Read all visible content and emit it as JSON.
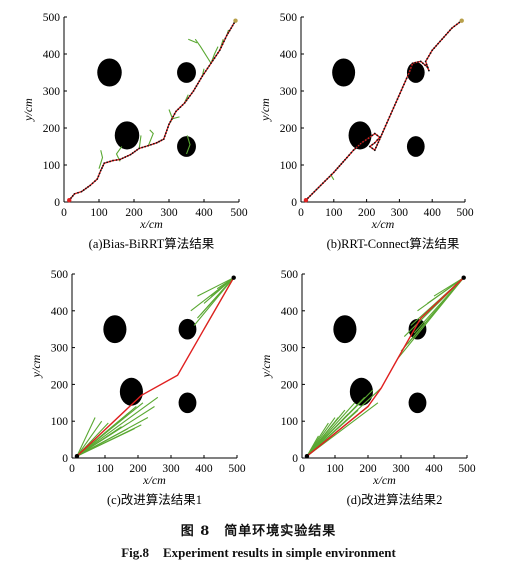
{
  "figure_caption": {
    "number_cn": "图 8",
    "title_cn": "简单环境实验结果",
    "number_en": "Fig.8",
    "title_en": "Experiment results in simple environment"
  },
  "colors": {
    "obstacle": "#000000",
    "path": "#e02020",
    "tree": "#5aa832",
    "path_node": "#111111",
    "goal": "#b8a04a",
    "start": "#e02020"
  },
  "chart_data": [
    {
      "type": "scatter",
      "caption": "(a)Bias-BiRRT算法结果",
      "xlabel": "x/cm",
      "ylabel": "y/cm",
      "xlim": [
        0,
        500
      ],
      "ylim": [
        0,
        500
      ],
      "xticks": [
        "0",
        "100",
        "200",
        "300",
        "400",
        "500"
      ],
      "yticks": [
        "0",
        "100",
        "200",
        "300",
        "400",
        "500"
      ],
      "obstacles": [
        {
          "cx": 130,
          "cy": 350,
          "rx": 35,
          "ry": 38
        },
        {
          "cx": 180,
          "cy": 180,
          "rx": 35,
          "ry": 38
        },
        {
          "cx": 350,
          "cy": 350,
          "rx": 27,
          "ry": 28
        },
        {
          "cx": 350,
          "cy": 150,
          "rx": 27,
          "ry": 28
        }
      ],
      "start": [
        15,
        5
      ],
      "goal": [
        490,
        490
      ],
      "path": [
        [
          15,
          5
        ],
        [
          30,
          22
        ],
        [
          50,
          28
        ],
        [
          75,
          45
        ],
        [
          95,
          62
        ],
        [
          105,
          85
        ],
        [
          115,
          105
        ],
        [
          140,
          112
        ],
        [
          160,
          115
        ],
        [
          190,
          128
        ],
        [
          215,
          145
        ],
        [
          240,
          152
        ],
        [
          265,
          160
        ],
        [
          285,
          170
        ],
        [
          300,
          210
        ],
        [
          320,
          245
        ],
        [
          345,
          268
        ],
        [
          370,
          300
        ],
        [
          395,
          340
        ],
        [
          420,
          375
        ],
        [
          445,
          410
        ],
        [
          465,
          450
        ],
        [
          490,
          490
        ]
      ],
      "tree_branches": [
        [
          [
            100,
            90
          ],
          [
            110,
            120
          ],
          [
            105,
            140
          ]
        ],
        [
          [
            215,
            145
          ],
          [
            220,
            180
          ]
        ],
        [
          [
            240,
            150
          ],
          [
            255,
            185
          ],
          [
            245,
            195
          ]
        ],
        [
          [
            300,
            210
          ],
          [
            310,
            225
          ],
          [
            330,
            230
          ]
        ],
        [
          [
            310,
            225
          ],
          [
            300,
            250
          ]
        ],
        [
          [
            345,
            270
          ],
          [
            355,
            290
          ]
        ],
        [
          [
            350,
            130
          ],
          [
            360,
            155
          ],
          [
            352,
            180
          ]
        ],
        [
          [
            395,
            340
          ],
          [
            400,
            360
          ]
        ],
        [
          [
            420,
            375
          ],
          [
            390,
            420
          ],
          [
            375,
            440
          ]
        ],
        [
          [
            420,
            375
          ],
          [
            430,
            400
          ],
          [
            440,
            420
          ]
        ],
        [
          [
            445,
            410
          ],
          [
            455,
            440
          ]
        ],
        [
          [
            465,
            450
          ],
          [
            470,
            465
          ]
        ],
        [
          [
            380,
            430
          ],
          [
            355,
            440
          ]
        ],
        [
          [
            160,
            110
          ],
          [
            150,
            130
          ],
          [
            165,
            150
          ]
        ]
      ]
    },
    {
      "type": "scatter",
      "caption": "(b)RRT-Connect算法结果",
      "xlabel": "x/cm",
      "ylabel": "y/cm",
      "xlim": [
        0,
        500
      ],
      "ylim": [
        0,
        500
      ],
      "xticks": [
        "0",
        "100",
        "200",
        "300",
        "400",
        "500"
      ],
      "yticks": [
        "0",
        "100",
        "200",
        "300",
        "400",
        "500"
      ],
      "obstacles": [
        {
          "cx": 130,
          "cy": 350,
          "rx": 35,
          "ry": 38
        },
        {
          "cx": 180,
          "cy": 180,
          "rx": 35,
          "ry": 38
        },
        {
          "cx": 350,
          "cy": 350,
          "rx": 27,
          "ry": 28
        },
        {
          "cx": 350,
          "cy": 150,
          "rx": 27,
          "ry": 28
        }
      ],
      "start": [
        15,
        5
      ],
      "goal": [
        490,
        490
      ],
      "path": [
        [
          15,
          5
        ],
        [
          60,
          45
        ],
        [
          100,
          80
        ],
        [
          140,
          120
        ],
        [
          160,
          140
        ],
        [
          185,
          160
        ],
        [
          210,
          175
        ],
        [
          225,
          185
        ],
        [
          240,
          175
        ],
        [
          225,
          160
        ],
        [
          210,
          150
        ],
        [
          225,
          140
        ],
        [
          250,
          190
        ],
        [
          270,
          230
        ],
        [
          290,
          270
        ],
        [
          310,
          310
        ],
        [
          330,
          350
        ],
        [
          340,
          375
        ],
        [
          365,
          380
        ],
        [
          385,
          365
        ],
        [
          390,
          355
        ],
        [
          380,
          380
        ],
        [
          400,
          410
        ],
        [
          430,
          440
        ],
        [
          460,
          470
        ],
        [
          490,
          490
        ]
      ],
      "tree_branches": [
        [
          [
            90,
            75
          ],
          [
            100,
            60
          ]
        ]
      ]
    },
    {
      "type": "scatter",
      "caption": "(c)改进算法结果1",
      "xlabel": "x/cm",
      "ylabel": "y/cm",
      "xlim": [
        0,
        500
      ],
      "ylim": [
        0,
        500
      ],
      "xticks": [
        "0",
        "100",
        "200",
        "300",
        "400",
        "500"
      ],
      "yticks": [
        "0",
        "100",
        "200",
        "300",
        "400",
        "500"
      ],
      "obstacles": [
        {
          "cx": 130,
          "cy": 350,
          "rx": 35,
          "ry": 38
        },
        {
          "cx": 180,
          "cy": 180,
          "rx": 35,
          "ry": 38
        },
        {
          "cx": 350,
          "cy": 350,
          "rx": 27,
          "ry": 28
        },
        {
          "cx": 350,
          "cy": 150,
          "rx": 27,
          "ry": 28
        }
      ],
      "start": [
        15,
        5
      ],
      "goal": [
        490,
        490
      ],
      "path": [
        [
          15,
          5
        ],
        [
          210,
          170
        ],
        [
          320,
          225
        ],
        [
          400,
          350
        ],
        [
          490,
          490
        ]
      ],
      "fan_trees": [
        {
          "root": [
            15,
            5
          ],
          "tips": [
            [
              70,
              110
            ],
            [
              90,
              100
            ],
            [
              110,
              95
            ],
            [
              130,
              90
            ],
            [
              150,
              85
            ],
            [
              170,
              80
            ],
            [
              190,
              80
            ],
            [
              210,
              90
            ],
            [
              230,
              110
            ],
            [
              250,
              140
            ],
            [
              260,
              165
            ],
            [
              215,
              150
            ],
            [
              195,
              140
            ],
            [
              175,
              125
            ]
          ]
        },
        {
          "root": [
            490,
            490
          ],
          "tips": [
            [
              380,
              380
            ],
            [
              400,
              350
            ],
            [
              390,
              390
            ],
            [
              400,
              420
            ],
            [
              420,
              440
            ],
            [
              440,
              460
            ],
            [
              410,
              410
            ],
            [
              370,
              360
            ],
            [
              360,
              400
            ],
            [
              380,
              440
            ]
          ]
        }
      ]
    },
    {
      "type": "scatter",
      "caption": "(d)改进算法结果2",
      "xlabel": "x/cm",
      "ylabel": "y/cm",
      "xlim": [
        0,
        500
      ],
      "ylim": [
        0,
        500
      ],
      "xticks": [
        "0",
        "100",
        "200",
        "300",
        "400",
        "500"
      ],
      "yticks": [
        "0",
        "100",
        "200",
        "300",
        "400",
        "500"
      ],
      "obstacles": [
        {
          "cx": 130,
          "cy": 350,
          "rx": 35,
          "ry": 38
        },
        {
          "cx": 180,
          "cy": 180,
          "rx": 35,
          "ry": 38
        },
        {
          "cx": 350,
          "cy": 350,
          "rx": 27,
          "ry": 28
        },
        {
          "cx": 350,
          "cy": 150,
          "rx": 27,
          "ry": 28
        }
      ],
      "start": [
        15,
        5
      ],
      "goal": [
        490,
        490
      ],
      "path": [
        [
          15,
          5
        ],
        [
          200,
          140
        ],
        [
          240,
          190
        ],
        [
          290,
          270
        ],
        [
          360,
          380
        ],
        [
          490,
          490
        ]
      ],
      "fan_trees": [
        {
          "root": [
            15,
            5
          ],
          "tips": [
            [
              50,
              60
            ],
            [
              80,
              95
            ],
            [
              110,
              110
            ],
            [
              140,
              120
            ],
            [
              170,
              130
            ],
            [
              200,
              140
            ],
            [
              230,
              150
            ],
            [
              240,
              190
            ],
            [
              215,
              185
            ],
            [
              190,
              165
            ],
            [
              160,
              150
            ],
            [
              130,
              130
            ],
            [
              100,
              110
            ]
          ]
        },
        {
          "root": [
            490,
            490
          ],
          "tips": [
            [
              290,
              270
            ],
            [
              300,
              290
            ],
            [
              320,
              310
            ],
            [
              340,
              340
            ],
            [
              360,
              380
            ],
            [
              380,
              420
            ],
            [
              400,
              440
            ],
            [
              350,
              400
            ],
            [
              330,
              360
            ],
            [
              310,
              330
            ]
          ]
        }
      ]
    }
  ]
}
